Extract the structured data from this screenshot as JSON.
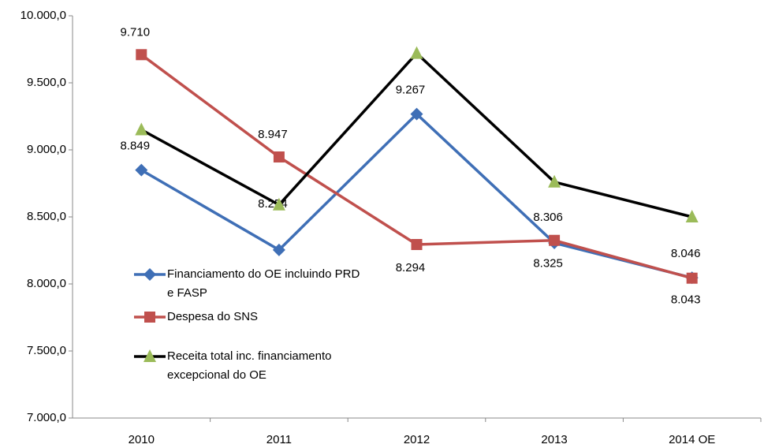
{
  "chart_data": {
    "type": "line",
    "categories": [
      "2010",
      "2011",
      "2012",
      "2013",
      "2014 OE"
    ],
    "series": [
      {
        "name": "Financiamento do OE incluindo PRD e FASP",
        "color": "#3f6fb6",
        "marker": "diamond",
        "marker_color": "#3f6fb6",
        "values": [
          8849,
          8254,
          9267,
          8306,
          8046
        ],
        "value_labels": [
          "8.849",
          "8.254",
          "9.267",
          "8.306",
          "8.046"
        ]
      },
      {
        "name": "Despesa do SNS",
        "color": "#c0504d",
        "marker": "square",
        "marker_color": "#c0504d",
        "values": [
          9710,
          8947,
          8294,
          8325,
          8043
        ],
        "value_labels": [
          "9.710",
          "8.947",
          "8.294",
          "8.325",
          "8.043"
        ]
      },
      {
        "name": "Receita total inc. financiamento excepcional do OE",
        "color": "#000000",
        "marker": "triangle",
        "marker_color": "#9bbb59",
        "values": [
          9150,
          8590,
          9720,
          8760,
          8500
        ]
      }
    ],
    "ylim": [
      7000,
      10000
    ],
    "yticks": [
      {
        "value": 7000,
        "label": "7.000,0"
      },
      {
        "value": 7500,
        "label": "7.500,0"
      },
      {
        "value": 8000,
        "label": "8.000,0"
      },
      {
        "value": 8500,
        "label": "8.500,0"
      },
      {
        "value": 9000,
        "label": "9.000,0"
      },
      {
        "value": 9500,
        "label": "9.500,0"
      },
      {
        "value": 10000,
        "label": "10.000,0"
      }
    ],
    "grid": false
  }
}
